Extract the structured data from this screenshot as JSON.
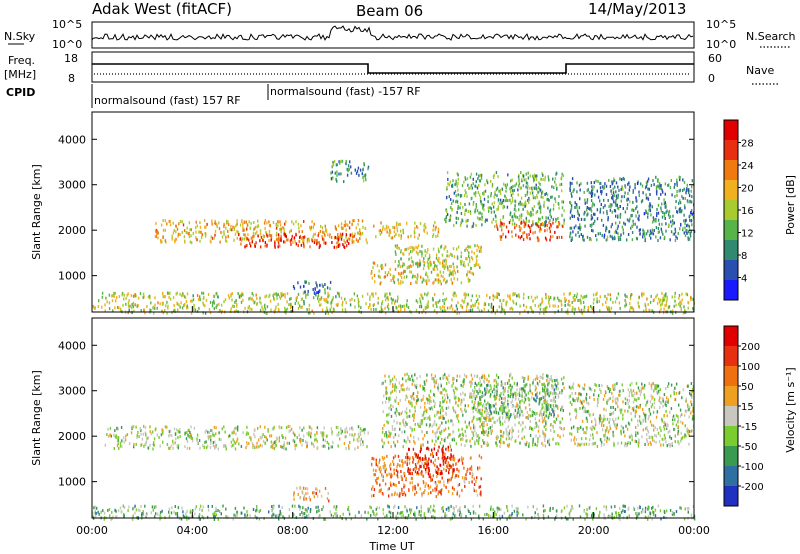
{
  "header": {
    "station": "Adak West (fitACF)",
    "beam": "Beam 06",
    "date": "14/May/2013"
  },
  "panels": {
    "nsky": {
      "label": "N.Sky",
      "right_label": "N.Search",
      "ticks": [
        "10^5",
        "10^0"
      ],
      "right_ticks": [
        "10^5",
        "10^0"
      ]
    },
    "freq": {
      "label_line1": "Freq.",
      "label_line2": "[MHz]",
      "ticks": [
        "18",
        "8"
      ],
      "right_label": "Nave",
      "right_ticks": [
        "60",
        "0"
      ]
    },
    "cpid": {
      "label": "CPID",
      "entries": [
        "normalsound (fast) 157 RF",
        "normalsound (fast) -157 RF"
      ]
    }
  },
  "chart_data": [
    {
      "type": "heatmap",
      "title": "",
      "ylabel": "Slant Range [km]",
      "xlabel": "",
      "xlim": [
        0,
        24
      ],
      "ylim": [
        200,
        4600
      ],
      "yticks": [
        "1000",
        "2000",
        "3000",
        "4000"
      ],
      "colorbar": {
        "label": "Power [dB]",
        "ticks": [
          "4",
          "8",
          "12",
          "16",
          "20",
          "24",
          "28"
        ],
        "colors": [
          "#1a1aff",
          "#2a4fb0",
          "#2f8a70",
          "#58b34a",
          "#a8cc30",
          "#f0b020",
          "#f07a10",
          "#e83010",
          "#e00000"
        ]
      },
      "regions": [
        {
          "t0": 2.5,
          "t1": 11.0,
          "r0": 1750,
          "r1": 2250,
          "level": 0.62
        },
        {
          "t0": 5.8,
          "t1": 10.5,
          "r0": 1650,
          "r1": 1950,
          "level": 0.85
        },
        {
          "t0": 11.1,
          "t1": 15.2,
          "r0": 850,
          "r1": 1350,
          "level": 0.55
        },
        {
          "t0": 12.0,
          "t1": 15.5,
          "r0": 1200,
          "r1": 1700,
          "level": 0.5
        },
        {
          "t0": 11.2,
          "t1": 13.8,
          "r0": 1850,
          "r1": 2200,
          "level": 0.6
        },
        {
          "t0": 14.0,
          "t1": 18.8,
          "r0": 2100,
          "r1": 3300,
          "level": 0.38
        },
        {
          "t0": 16.0,
          "t1": 18.8,
          "r0": 1800,
          "r1": 2200,
          "level": 0.78
        },
        {
          "t0": 19.0,
          "t1": 24.0,
          "r0": 1800,
          "r1": 3200,
          "level": 0.28
        },
        {
          "t0": 8.0,
          "t1": 9.5,
          "r0": 600,
          "r1": 900,
          "level": 0.22
        },
        {
          "t0": 9.5,
          "t1": 11.0,
          "r0": 3100,
          "r1": 3550,
          "level": 0.32
        },
        {
          "t0": 0.0,
          "t1": 24.0,
          "r0": 200,
          "r1": 650,
          "level": 0.5
        }
      ]
    },
    {
      "type": "heatmap",
      "title": "",
      "ylabel": "Slant Range [km]",
      "xlabel": "Time UT",
      "xlim": [
        0,
        24
      ],
      "ylim": [
        200,
        4600
      ],
      "yticks": [
        "1000",
        "2000",
        "3000",
        "4000"
      ],
      "xticks": [
        "00:00",
        "04:00",
        "08:00",
        "12:00",
        "16:00",
        "20:00",
        "00:00"
      ],
      "colorbar": {
        "label": "Velocity [m s⁻¹]",
        "ticks": [
          "200",
          "100",
          "50",
          "15",
          "-15",
          "-50",
          "-100",
          "-200"
        ],
        "colors": [
          "#2030c0",
          "#2f70a0",
          "#3a9a50",
          "#7acc30",
          "#c8c8c0",
          "#f0a020",
          "#f07010",
          "#e83010",
          "#e00000"
        ]
      },
      "regions": [
        {
          "t0": 0.5,
          "t1": 11.0,
          "r0": 1750,
          "r1": 2250,
          "level": 0.45
        },
        {
          "t0": 8.0,
          "t1": 9.5,
          "r0": 600,
          "r1": 900,
          "level": 0.62
        },
        {
          "t0": 11.1,
          "t1": 15.5,
          "r0": 700,
          "r1": 1600,
          "level": 0.7
        },
        {
          "t0": 12.5,
          "t1": 14.5,
          "r0": 1200,
          "r1": 1800,
          "level": 0.92
        },
        {
          "t0": 11.5,
          "t1": 18.8,
          "r0": 1800,
          "r1": 3400,
          "level": 0.45
        },
        {
          "t0": 15.0,
          "t1": 18.5,
          "r0": 2400,
          "r1": 3200,
          "level": 0.36
        },
        {
          "t0": 19.0,
          "t1": 24.0,
          "r0": 1800,
          "r1": 3200,
          "level": 0.45
        },
        {
          "t0": 0.0,
          "t1": 24.0,
          "r0": 200,
          "r1": 500,
          "level": 0.36
        }
      ]
    }
  ]
}
